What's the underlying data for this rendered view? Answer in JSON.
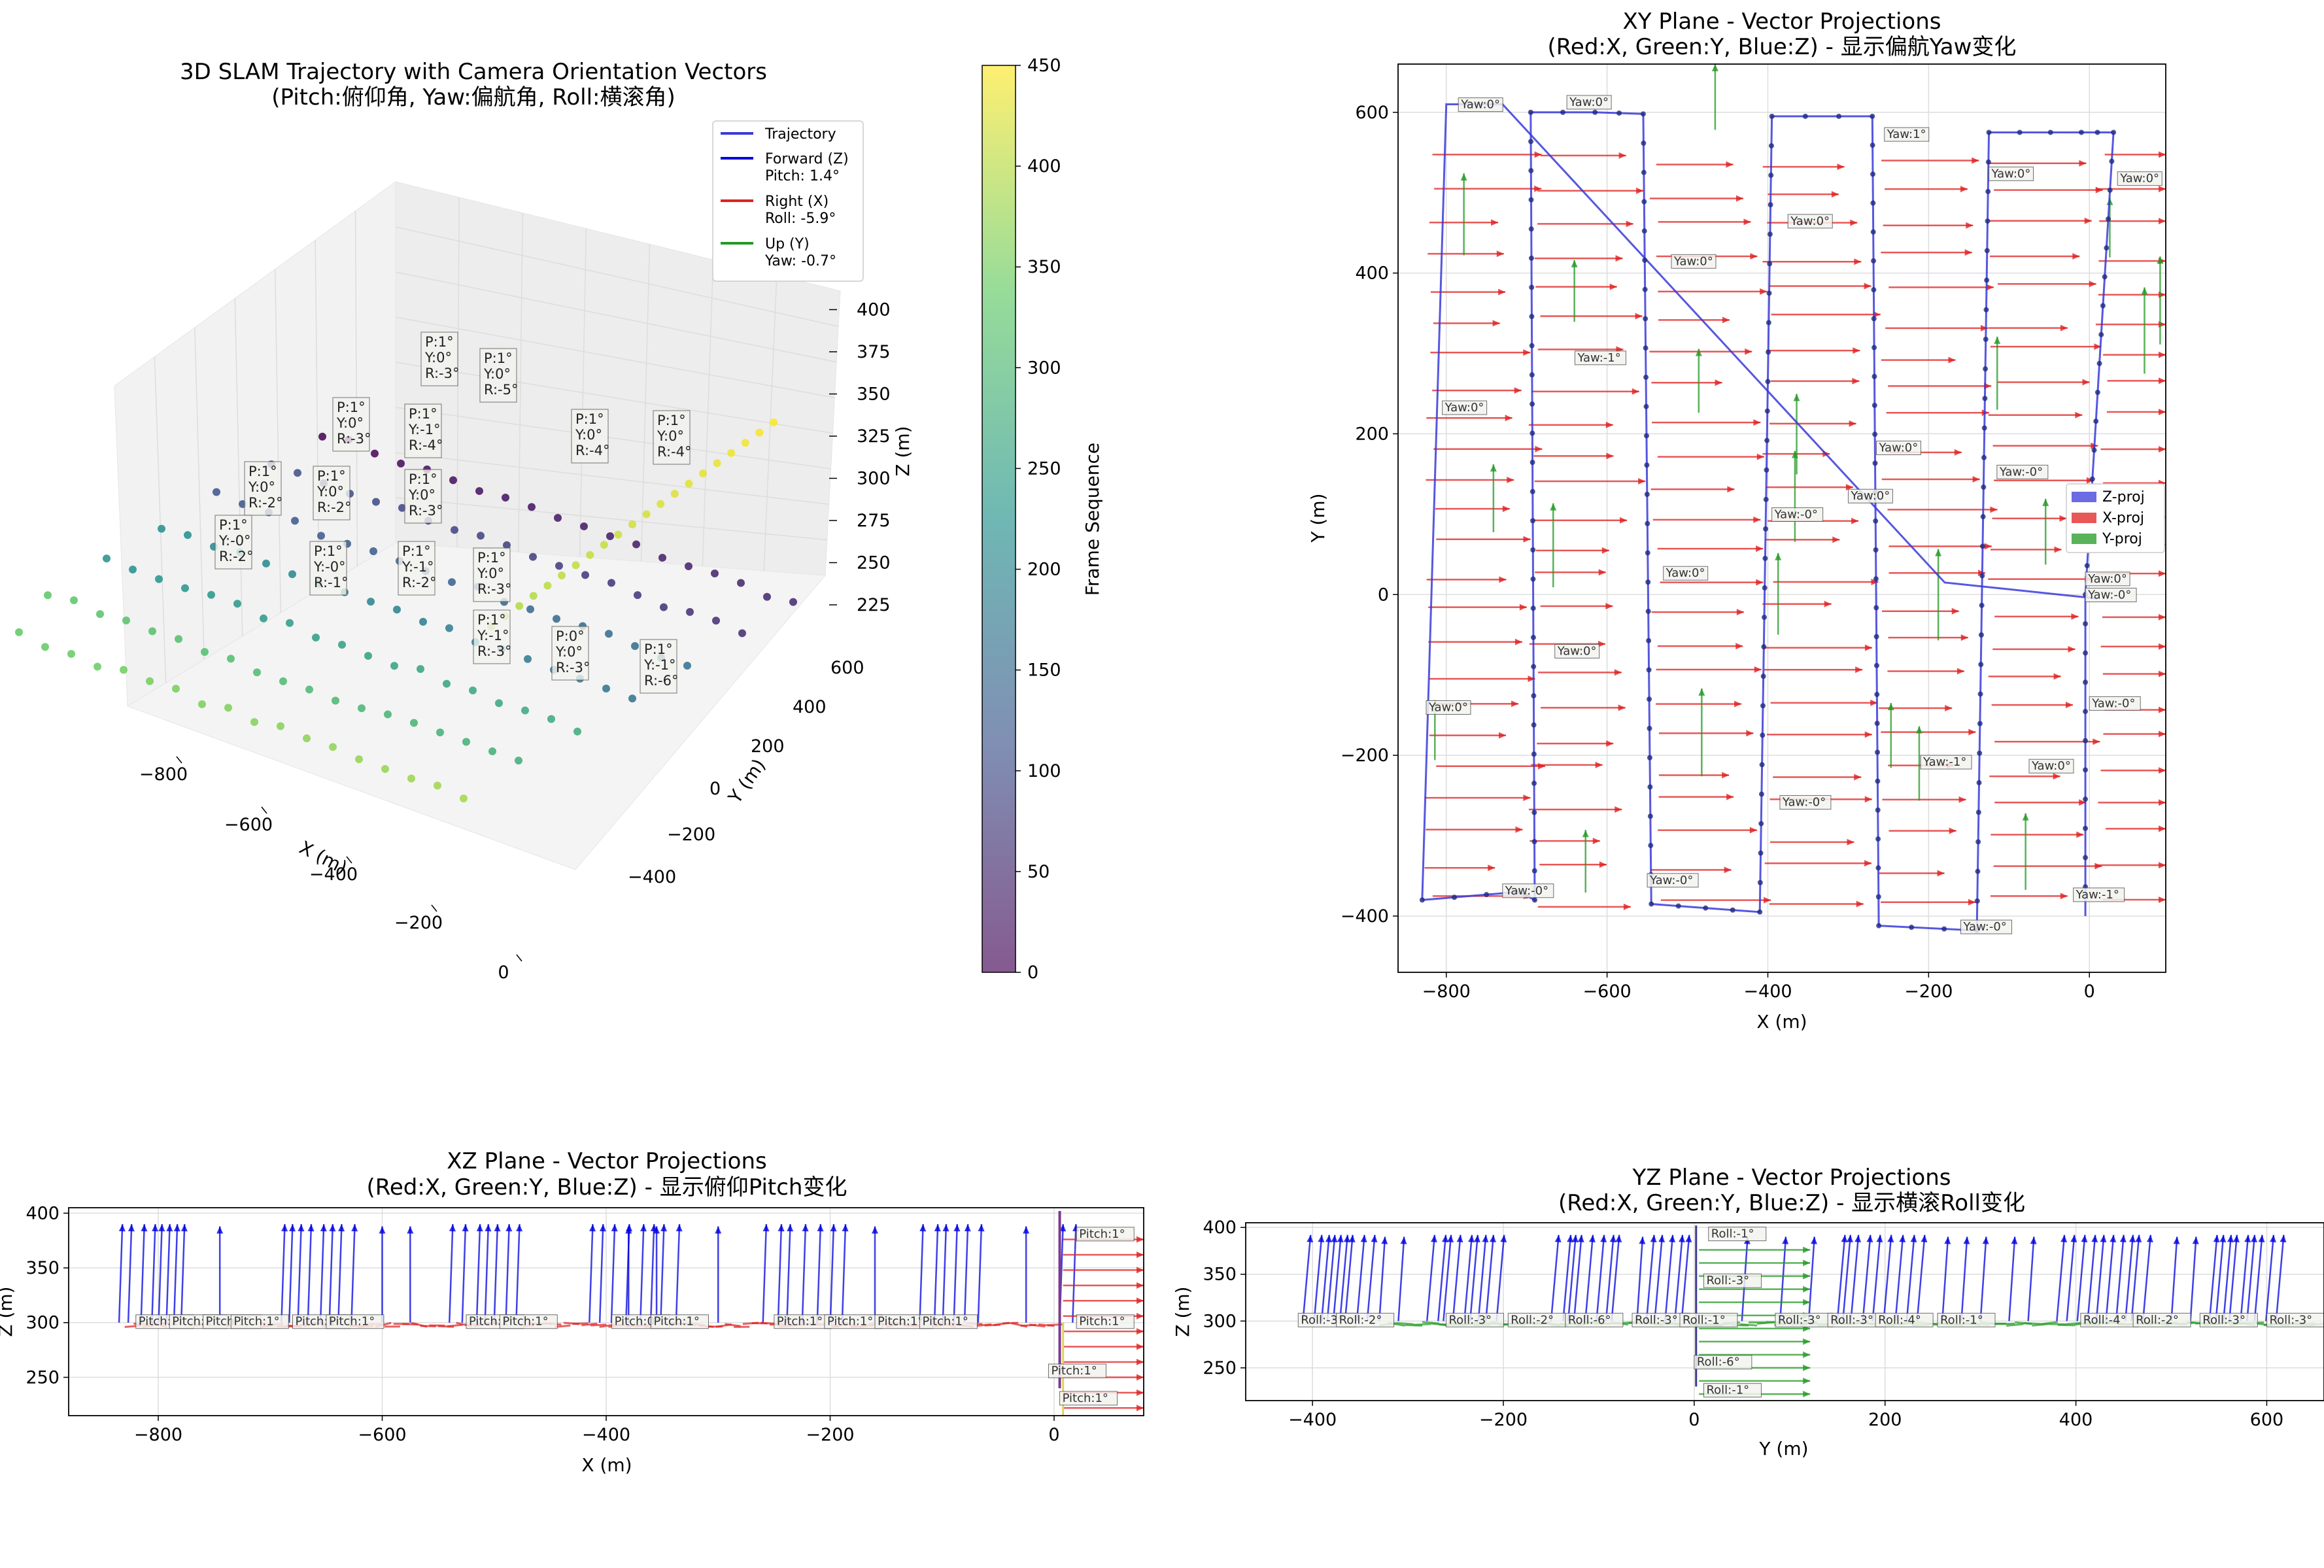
{
  "colors": {
    "trajectory": "#3a3ad9",
    "forward": "#0000e0",
    "right": "#e02020",
    "up": "#229922",
    "viridis": [
      "#440154",
      "#3b528b",
      "#21918c",
      "#5ec962",
      "#fde725"
    ]
  },
  "chart_data": [
    {
      "type": "scatter",
      "title": "3D SLAM Trajectory with Camera Orientation Vectors",
      "subtitle": "(Pitch:俯仰角, Yaw:偏航角, Roll:横滚角)",
      "xlabel": "X (m)",
      "ylabel": "Y (m)",
      "zlabel": "Z (m)",
      "xticks": [
        "−800",
        "−600",
        "−400",
        "−200",
        "0"
      ],
      "yticks": [
        "−400",
        "−200",
        "0",
        "200",
        "400",
        "600"
      ],
      "zticks": [
        "225",
        "250",
        "275",
        "300",
        "325",
        "350",
        "375",
        "400"
      ],
      "legend": {
        "placement": "top-right",
        "entries": [
          {
            "label": "Trajectory"
          },
          {
            "label": "Forward (Z)",
            "sub": "Pitch: 1.4°"
          },
          {
            "label": "Right (X)",
            "sub": "Roll: -5.9°"
          },
          {
            "label": "Up (Y)",
            "sub": "Yaw: -0.7°"
          }
        ]
      },
      "colorbar": {
        "label": "Frame Sequence",
        "range": [
          0,
          450
        ],
        "ticks": [
          "0",
          "50",
          "100",
          "150",
          "200",
          "250",
          "300",
          "350",
          "400",
          "450"
        ]
      },
      "annotations": [
        [
          "P:1°",
          "Y:0°",
          "R:-3°"
        ],
        [
          "P:1°",
          "Y:0°",
          "R:-5°"
        ],
        [
          "P:1°",
          "Y:0°",
          "R:-3°"
        ],
        [
          "P:1°",
          "Y:-1°",
          "R:-4°"
        ],
        [
          "P:1°",
          "Y:0°",
          "R:-2°"
        ],
        [
          "P:1°",
          "Y:0°",
          "R:-2°"
        ],
        [
          "P:1°",
          "Y:0°",
          "R:-3°"
        ],
        [
          "P:1°",
          "Y:0°",
          "R:-4°"
        ],
        [
          "P:1°",
          "Y:-0°",
          "R:-2°"
        ],
        [
          "P:1°",
          "Y:-0°",
          "R:-1°"
        ],
        [
          "P:1°",
          "Y:-1°",
          "R:-2°"
        ],
        [
          "P:1°",
          "Y:0°",
          "R:-3°"
        ],
        [
          "P:1°",
          "Y:-1°",
          "R:-3°"
        ],
        [
          "P:0°",
          "Y:0°",
          "R:-3°"
        ],
        [
          "P:1°",
          "Y:0°",
          "R:-4°"
        ],
        [
          "P:1°",
          "Y:-1°",
          "R:-6°"
        ]
      ]
    },
    {
      "type": "line",
      "title": "XY Plane - Vector Projections",
      "subtitle": "(Red:X, Green:Y, Blue:Z) - 显示偏航Yaw变化",
      "xlabel": "X (m)",
      "ylabel": "Y (m)",
      "xlim": [
        -860,
        95
      ],
      "ylim": [
        -470,
        660
      ],
      "xticks": [
        -800,
        -600,
        -400,
        -200,
        0
      ],
      "yticks": [
        -400,
        -200,
        0,
        200,
        400,
        600
      ],
      "legend": {
        "placement": "center-right",
        "entries": [
          "Z-proj",
          "X-proj",
          "Y-proj"
        ]
      },
      "yaw_labels": [
        "Yaw:0°",
        "Yaw:0°",
        "Yaw:1°",
        "Yaw:0°",
        "Yaw:0°",
        "Yaw:0°",
        "Yaw:0°",
        "Yaw:-1°",
        "Yaw:0°",
        "Yaw:0°",
        "Yaw:-0°",
        "Yaw:0°",
        "Yaw:-0°",
        "Yaw:0°",
        "Yaw:0°",
        "Yaw:-0°",
        "Yaw:0°",
        "Yaw:0°",
        "Yaw:-0°",
        "Yaw:-1°",
        "Yaw:0°",
        "Yaw:-0°",
        "Yaw:-0°",
        "Yaw:-0°",
        "Yaw:-1°",
        "Yaw:-0°"
      ]
    },
    {
      "type": "line",
      "title": "XZ Plane - Vector Projections",
      "subtitle": "(Red:X, Green:Y, Blue:Z) - 显示俯仰Pitch变化",
      "xlabel": "X (m)",
      "ylabel": "Z (m)",
      "xlim": [
        -880,
        80
      ],
      "ylim": [
        215,
        405
      ],
      "xticks": [
        -800,
        -600,
        -400,
        -200,
        0
      ],
      "yticks": [
        250,
        300,
        350,
        400
      ],
      "pitch_labels": [
        "Pitch:1°",
        "Pitch:1°",
        "Pitch:1°",
        "Pitch:1°",
        "Pitch:1°",
        "Pitch:1°",
        "Pitch:1°",
        "Pitch:1°",
        "Pitch:0°",
        "Pitch:1°",
        "Pitch:1°",
        "Pitch:1°",
        "Pitch:1°",
        "Pitch:1°",
        "Pitch:1°"
      ]
    },
    {
      "type": "line",
      "title": "YZ Plane - Vector Projections",
      "subtitle": "(Red:X, Green:Y, Blue:Z) - 显示横滚Roll变化",
      "xlabel": "Y (m)",
      "ylabel": "Z (m)",
      "xlim": [
        -470,
        660
      ],
      "ylim": [
        215,
        405
      ],
      "xticks": [
        -400,
        -200,
        0,
        200,
        400,
        600
      ],
      "yticks": [
        250,
        300,
        350,
        400
      ],
      "roll_labels": [
        "Roll:-3°",
        "Roll:-2°",
        "Roll:-3°",
        "Roll:-2°",
        "Roll:-6°",
        "Roll:-3°",
        "Roll:-1°",
        "Roll:-3°",
        "Roll:-3°",
        "Roll:-4°",
        "Roll:-1°",
        "Roll:-4°",
        "Roll:-2°",
        "Roll:-3°",
        "Roll:-3°",
        "Roll:-6°",
        "Roll:-1°"
      ]
    }
  ]
}
